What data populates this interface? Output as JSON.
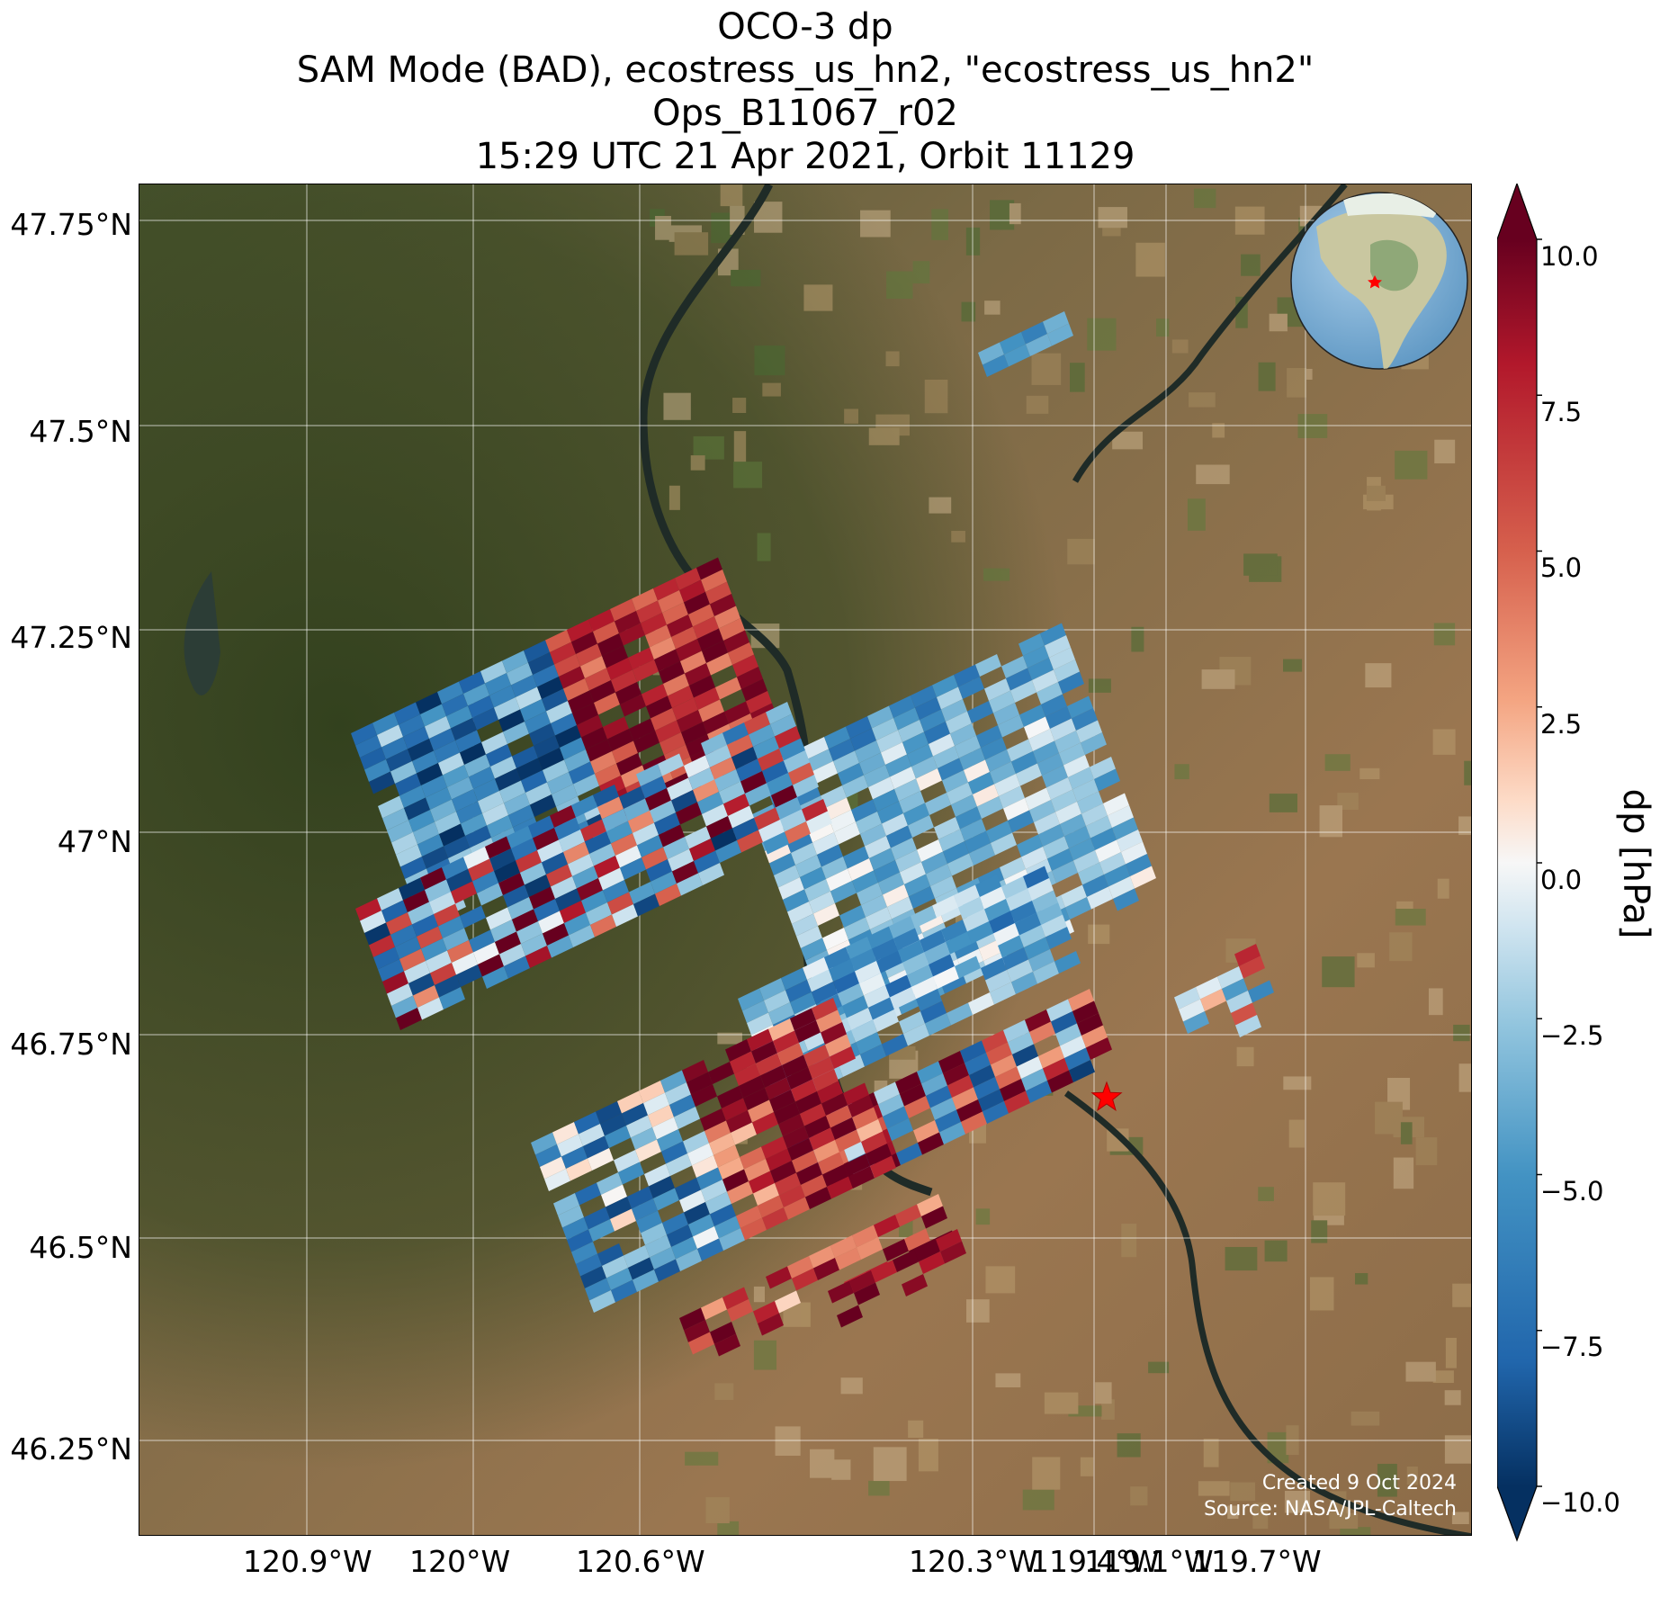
{
  "title": {
    "line1": "OCO-3 dp",
    "line2": "SAM Mode (BAD), ecostress_us_hn2, \"ecostress_us_hn2\"",
    "line3": "Ops_B11067_r02",
    "line4": "15:29 UTC 21 Apr 2021, Orbit 11129"
  },
  "map": {
    "lat_ticks": [
      "47.75°N",
      "47.5°N",
      "47.25°N",
      "47°N",
      "46.75°N",
      "46.5°N",
      "46.25°N"
    ],
    "lon_ticks": [
      "120.9°W",
      "120.6°W",
      "120.3°W",
      "120°W",
      "119.7°W",
      "119.4°W",
      "119.1°W"
    ],
    "credit_created": "Created 9 Oct 2024",
    "credit_source": "Source: NASA/JPL-Caltech",
    "target_marker": "red-star",
    "inset": "globe-locator"
  },
  "colorbar": {
    "title": "dp [hPa]",
    "ticks": [
      "10.0",
      "7.5",
      "5.0",
      "2.5",
      "0.0",
      "−2.5",
      "−5.0",
      "−7.5",
      "−10.0"
    ],
    "vmin": -10,
    "vmax": 10,
    "colormap": "RdBu_r",
    "extend": "both"
  },
  "colors": {
    "terrain": "#8a6a45",
    "forest": "#3e4a25",
    "river": "#25352f",
    "target": "#ff0000",
    "dark_red": "#67001f",
    "dark_blue": "#053061"
  }
}
